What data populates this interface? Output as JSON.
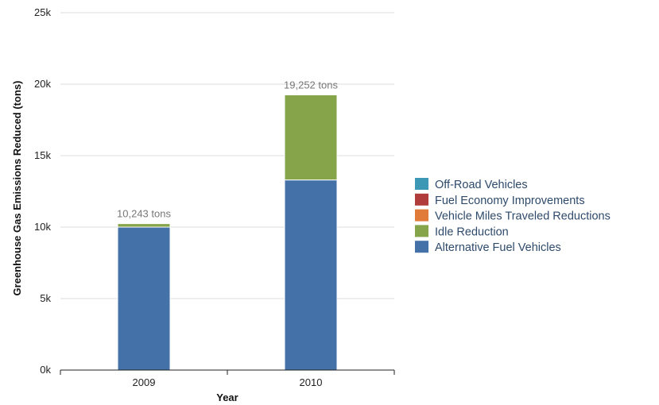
{
  "chart_data": {
    "type": "bar",
    "stacked": true,
    "categories": [
      "2009",
      "2010"
    ],
    "series": [
      {
        "name": "Alternative Fuel Vehicles",
        "color": "#4472a8",
        "values": [
          10000,
          13300
        ]
      },
      {
        "name": "Idle Reduction",
        "color": "#86a44a",
        "values": [
          243,
          5952
        ]
      },
      {
        "name": "Vehicle Miles Traveled Reductions",
        "color": "#e07b39",
        "values": [
          0,
          0
        ]
      },
      {
        "name": "Fuel Economy Improvements",
        "color": "#b03c3c",
        "values": [
          0,
          0
        ]
      },
      {
        "name": "Off-Road Vehicles",
        "color": "#3c98b5",
        "values": [
          0,
          0
        ]
      }
    ],
    "totals": [
      "10,243 tons",
      "19,252 tons"
    ],
    "xlabel": "Year",
    "ylabel": "Greenhouse Gas Emissions Reduced (tons)",
    "ylim": [
      0,
      25000
    ],
    "yticks": [
      {
        "value": 0,
        "label": "0k"
      },
      {
        "value": 5000,
        "label": "5k"
      },
      {
        "value": 10000,
        "label": "10k"
      },
      {
        "value": 15000,
        "label": "15k"
      },
      {
        "value": 20000,
        "label": "20k"
      },
      {
        "value": 25000,
        "label": "25k"
      }
    ],
    "grid": true,
    "legend_position": "right"
  }
}
